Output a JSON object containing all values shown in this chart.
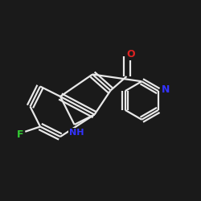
{
  "background_color": "#1a1a1a",
  "bond_color": "#e8e8e8",
  "atom_colors": {
    "F": "#33cc33",
    "N": "#3333ff",
    "O": "#dd2222",
    "C": "#e8e8e8",
    "H": "#e8e8e8"
  },
  "title": "",
  "figsize": [
    2.5,
    2.5
  ],
  "dpi": 100
}
